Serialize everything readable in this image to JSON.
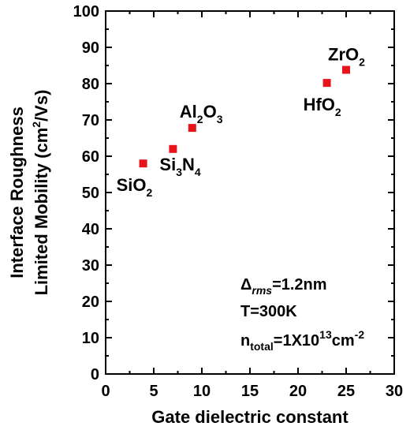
{
  "chart_data": {
    "type": "scatter",
    "xlabel": "Gate dielectric constant",
    "ylabel_line1": "Interface Roughness",
    "ylabel_line2": "Limited Mobility (cm",
    "ylabel_sup": "2",
    "ylabel_end": "/Vs)",
    "xlim": [
      0,
      30
    ],
    "ylim": [
      0,
      100
    ],
    "xticks": [
      0,
      5,
      10,
      15,
      20,
      25,
      30
    ],
    "yticks": [
      0,
      10,
      20,
      30,
      40,
      50,
      60,
      70,
      80,
      90,
      100
    ],
    "grid": false,
    "marker_color": "#e8141b",
    "points": [
      {
        "x": 3.9,
        "y": 58,
        "label": "SiO",
        "sub1": "2"
      },
      {
        "x": 7,
        "y": 62,
        "label": "Si",
        "sub1": "3",
        "mid": "N",
        "sub2": "4"
      },
      {
        "x": 9,
        "y": 67.8,
        "label": "Al",
        "sub1": "2",
        "mid": "O",
        "sub2": "3"
      },
      {
        "x": 23,
        "y": 80.2,
        "label": "HfO",
        "sub1": "2"
      },
      {
        "x": 25,
        "y": 83.8,
        "label": "ZrO",
        "sub1": "2"
      }
    ],
    "annotations": {
      "delta_symbol": "Δ",
      "delta_sub": "rms",
      "delta_value": "=1.2nm",
      "temperature": "T=300K",
      "n_main": "n",
      "n_sub": "total",
      "n_mid": "=1X10",
      "n_sup": "13",
      "n_unit": "cm",
      "n_unit_sup": "-2"
    }
  }
}
